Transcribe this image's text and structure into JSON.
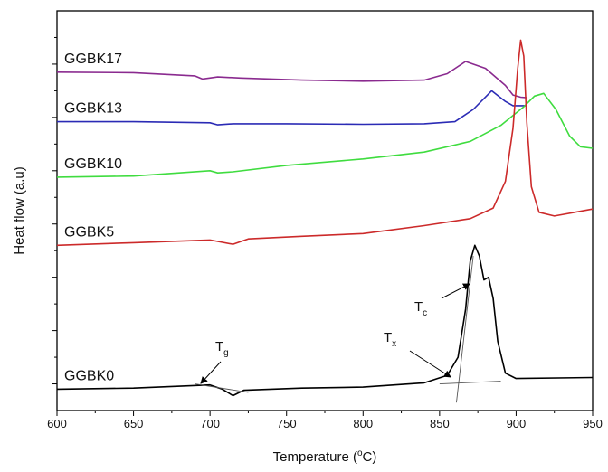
{
  "chart_data": {
    "type": "line",
    "title": "",
    "xlabel": "Temperature (°C)",
    "xlabel_parts": {
      "before": "Temperature (",
      "sup": "o",
      "after": "C)"
    },
    "ylabel": "Heat flow (a.u)",
    "xlim": [
      600,
      950
    ],
    "x_ticks": [
      600,
      650,
      700,
      750,
      800,
      850,
      900,
      950
    ],
    "y_ticks_labeled": false,
    "grid": false,
    "legend": "inline labels",
    "series": [
      {
        "name": "GGBK17",
        "color": "#8a2a8f",
        "points": [
          [
            600,
            6.35
          ],
          [
            650,
            6.34
          ],
          [
            690,
            6.28
          ],
          [
            695,
            6.22
          ],
          [
            705,
            6.26
          ],
          [
            720,
            6.24
          ],
          [
            760,
            6.2
          ],
          [
            800,
            6.18
          ],
          [
            840,
            6.2
          ],
          [
            855,
            6.32
          ],
          [
            867,
            6.55
          ],
          [
            880,
            6.42
          ],
          [
            893,
            6.1
          ],
          [
            898,
            5.92
          ],
          [
            903,
            5.88
          ],
          [
            907,
            5.87
          ]
        ]
      },
      {
        "name": "GGBK13",
        "color": "#2b2bb5",
        "points": [
          [
            600,
            5.42
          ],
          [
            650,
            5.42
          ],
          [
            700,
            5.4
          ],
          [
            705,
            5.36
          ],
          [
            715,
            5.38
          ],
          [
            750,
            5.38
          ],
          [
            800,
            5.37
          ],
          [
            840,
            5.38
          ],
          [
            860,
            5.42
          ],
          [
            872,
            5.65
          ],
          [
            884,
            6.0
          ],
          [
            893,
            5.8
          ],
          [
            898,
            5.72
          ],
          [
            907,
            5.72
          ]
        ]
      },
      {
        "name": "GGBK10",
        "color": "#3fdc3f",
        "points": [
          [
            600,
            4.38
          ],
          [
            650,
            4.4
          ],
          [
            700,
            4.5
          ],
          [
            705,
            4.46
          ],
          [
            715,
            4.48
          ],
          [
            750,
            4.6
          ],
          [
            800,
            4.72
          ],
          [
            840,
            4.85
          ],
          [
            870,
            5.05
          ],
          [
            890,
            5.35
          ],
          [
            905,
            5.7
          ],
          [
            912,
            5.9
          ],
          [
            918,
            5.95
          ],
          [
            926,
            5.65
          ],
          [
            935,
            5.15
          ],
          [
            942,
            4.95
          ],
          [
            950,
            4.92
          ]
        ]
      },
      {
        "name": "GGBK5",
        "color": "#cc2a2a",
        "points": [
          [
            600,
            3.1
          ],
          [
            650,
            3.15
          ],
          [
            700,
            3.2
          ],
          [
            715,
            3.12
          ],
          [
            725,
            3.22
          ],
          [
            760,
            3.27
          ],
          [
            800,
            3.32
          ],
          [
            840,
            3.47
          ],
          [
            870,
            3.6
          ],
          [
            885,
            3.8
          ],
          [
            893,
            4.3
          ],
          [
            898,
            5.3
          ],
          [
            901,
            6.4
          ],
          [
            903,
            6.95
          ],
          [
            905,
            6.65
          ],
          [
            907,
            5.4
          ],
          [
            910,
            4.2
          ],
          [
            915,
            3.72
          ],
          [
            925,
            3.65
          ],
          [
            950,
            3.78
          ]
        ]
      },
      {
        "name": "GGBK0",
        "color": "#000000",
        "points": [
          [
            600,
            0.4
          ],
          [
            650,
            0.42
          ],
          [
            700,
            0.48
          ],
          [
            708,
            0.4
          ],
          [
            715,
            0.28
          ],
          [
            722,
            0.38
          ],
          [
            760,
            0.42
          ],
          [
            800,
            0.44
          ],
          [
            840,
            0.52
          ],
          [
            855,
            0.66
          ],
          [
            862,
            1.0
          ],
          [
            867,
            1.9
          ],
          [
            870,
            2.8
          ],
          [
            873,
            3.1
          ],
          [
            876,
            2.9
          ],
          [
            879,
            2.45
          ],
          [
            882,
            2.5
          ],
          [
            885,
            2.1
          ],
          [
            888,
            1.3
          ],
          [
            893,
            0.7
          ],
          [
            900,
            0.6
          ],
          [
            950,
            0.62
          ]
        ]
      }
    ],
    "annotations": [
      {
        "label": "T",
        "subscript": "g",
        "at_x": 712
      },
      {
        "label": "T",
        "subscript": "x",
        "at_x": 858
      },
      {
        "label": "T",
        "subscript": "c",
        "at_x": 872
      }
    ]
  }
}
